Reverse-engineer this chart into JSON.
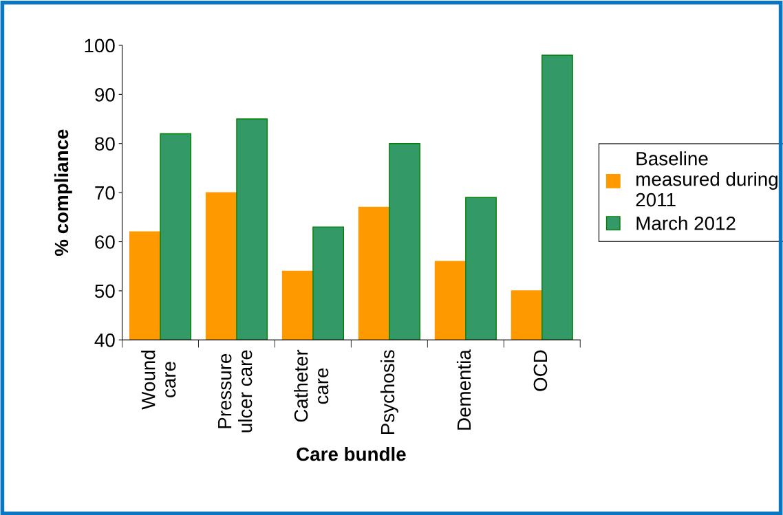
{
  "chart_data": {
    "type": "bar",
    "xlabel": "Care bundle",
    "ylabel": "% compliance",
    "categories": [
      "Wound\ncare",
      "Pressure\nulcer care",
      "Catheter\ncare",
      "Psychosis",
      "Dementia",
      "OCD"
    ],
    "series": [
      {
        "name": "Baseline\nmeasured during\n2011",
        "color": "#ff9900",
        "values": [
          62,
          70,
          54,
          67,
          56,
          50
        ]
      },
      {
        "name": "March 2012",
        "color": "#339966",
        "values": [
          82,
          85,
          63,
          80,
          69,
          98
        ]
      }
    ],
    "ylim": [
      40,
      100
    ],
    "yticks": [
      40,
      50,
      60,
      70,
      80,
      90,
      100
    ],
    "grid": false,
    "legend": "right"
  }
}
